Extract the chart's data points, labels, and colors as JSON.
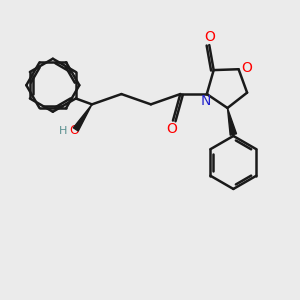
{
  "bg_color": "#ebebeb",
  "bond_color": "#1a1a1a",
  "bond_width": 1.8,
  "fig_size": [
    3.0,
    3.0
  ],
  "dpi": 100,
  "xlim": [
    0,
    10
  ],
  "ylim": [
    0,
    10
  ]
}
